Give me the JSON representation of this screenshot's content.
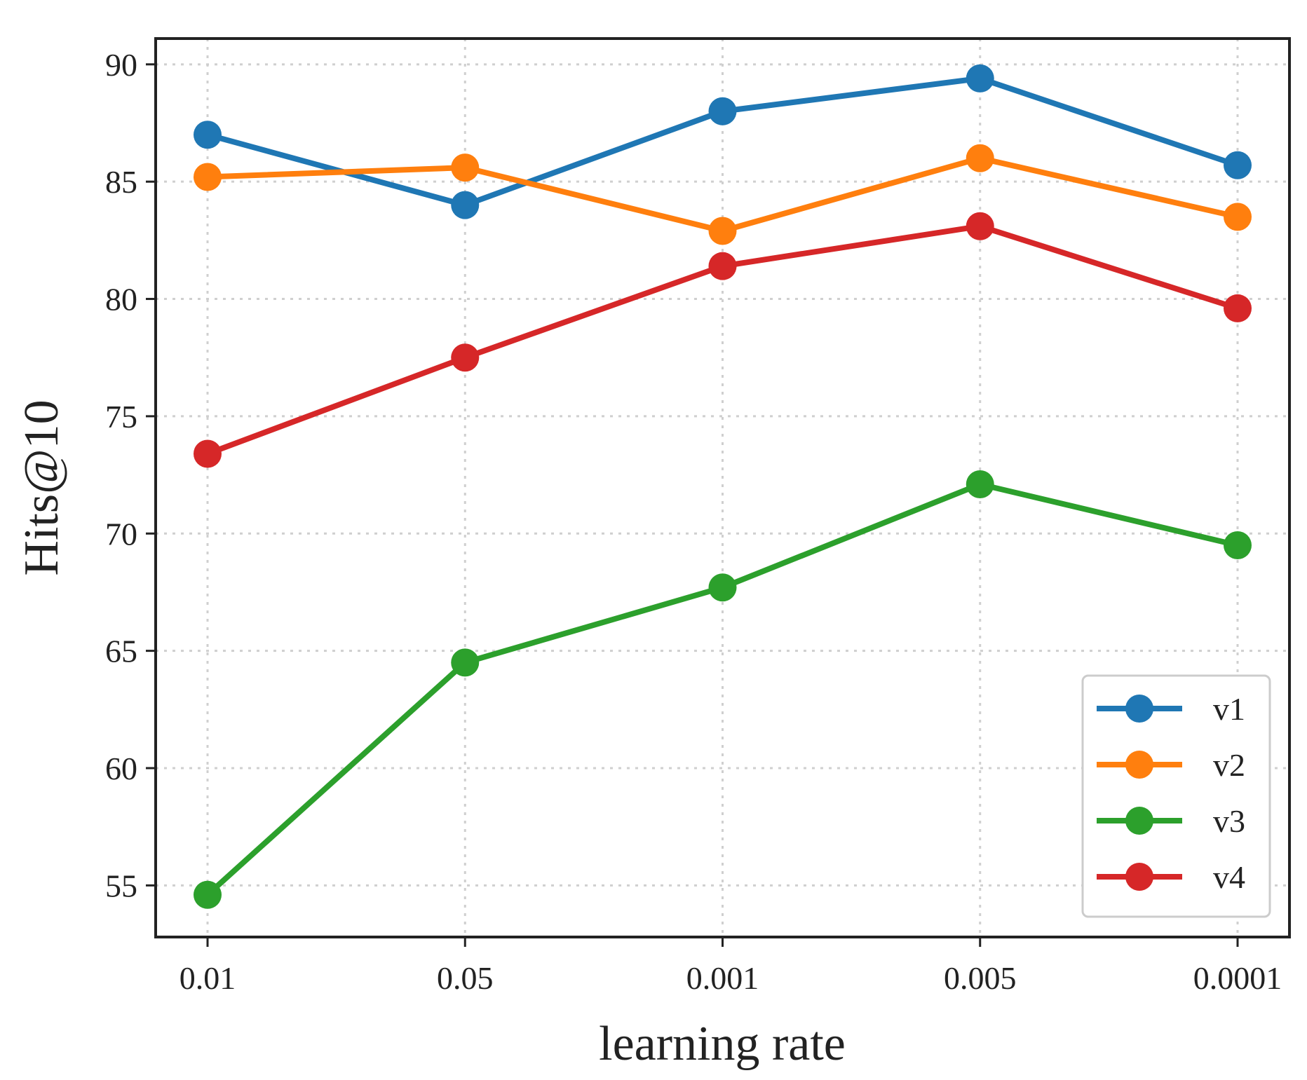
{
  "chart_data": {
    "type": "line",
    "title": "",
    "xlabel": "learning rate",
    "ylabel": "Hits@10",
    "categories": [
      "0.01",
      "0.05",
      "0.001",
      "0.005",
      "0.0001"
    ],
    "ylim": [
      52.8,
      91.1
    ],
    "yticks": [
      55,
      60,
      65,
      70,
      75,
      80,
      85,
      90
    ],
    "grid": true,
    "legend_position": "lower-right",
    "series": [
      {
        "name": "v1",
        "color": "#1f77b4",
        "values": [
          87.0,
          84.0,
          88.0,
          89.4,
          85.7
        ]
      },
      {
        "name": "v2",
        "color": "#ff7f0e",
        "values": [
          85.2,
          85.6,
          82.9,
          86.0,
          83.5
        ]
      },
      {
        "name": "v3",
        "color": "#2ca02c",
        "values": [
          54.6,
          64.5,
          67.7,
          72.1,
          69.5
        ]
      },
      {
        "name": "v4",
        "color": "#d62728",
        "values": [
          73.4,
          77.5,
          81.4,
          83.1,
          79.6
        ]
      }
    ]
  }
}
